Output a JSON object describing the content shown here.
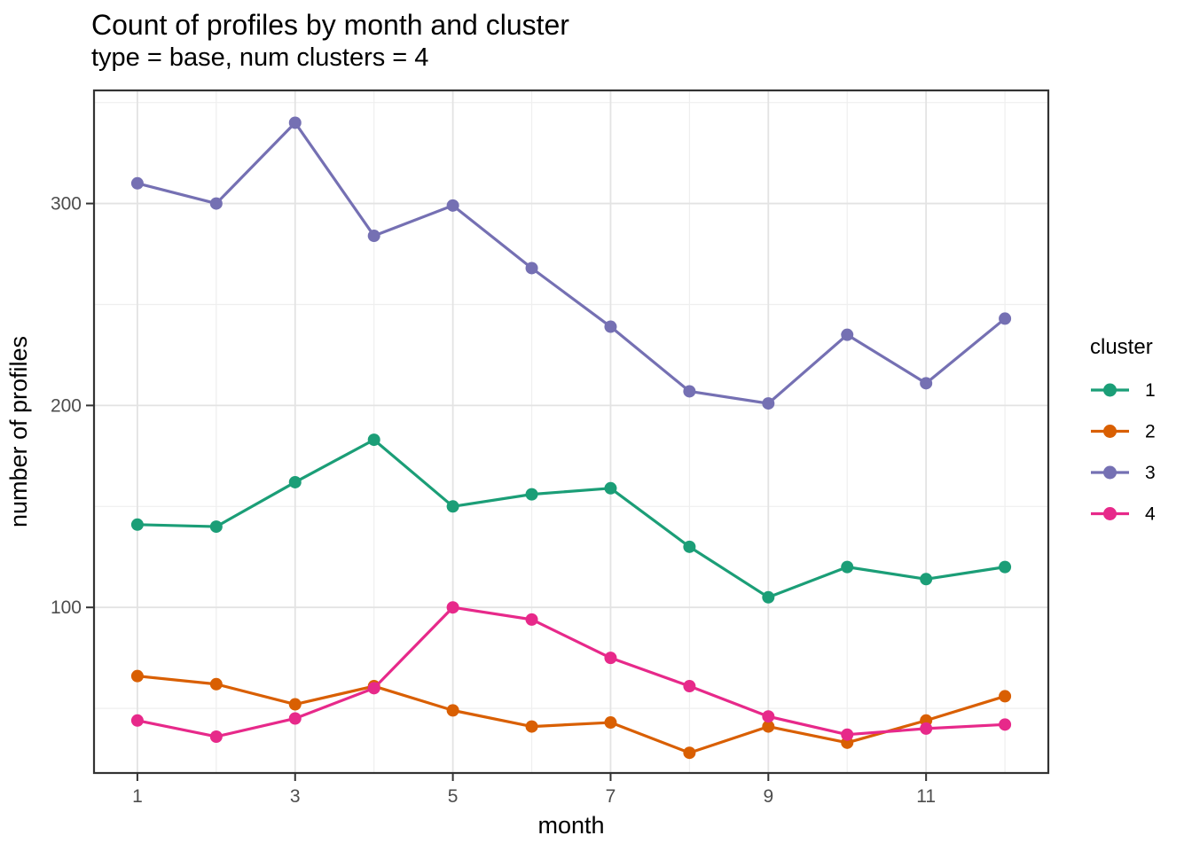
{
  "header": {
    "title": "Count of profiles by month and cluster",
    "subtitle": "type = base, num clusters = 4"
  },
  "chart_data": {
    "type": "line",
    "x": [
      1,
      2,
      3,
      4,
      5,
      6,
      7,
      8,
      9,
      10,
      11,
      12
    ],
    "series": [
      {
        "name": "1",
        "color": "#1B9E77",
        "values": [
          141,
          140,
          162,
          183,
          150,
          156,
          159,
          130,
          105,
          120,
          114,
          120
        ]
      },
      {
        "name": "2",
        "color": "#D95F02",
        "values": [
          66,
          62,
          52,
          61,
          49,
          41,
          43,
          28,
          41,
          33,
          44,
          56
        ]
      },
      {
        "name": "3",
        "color": "#7570B3",
        "values": [
          310,
          300,
          340,
          284,
          299,
          268,
          239,
          207,
          201,
          235,
          211,
          243
        ]
      },
      {
        "name": "4",
        "color": "#E7298A",
        "values": [
          44,
          36,
          45,
          60,
          100,
          94,
          75,
          61,
          46,
          37,
          40,
          42
        ]
      }
    ],
    "title": "Count of profiles by month and cluster",
    "subtitle": "type = base, num clusters = 4",
    "xlabel": "month",
    "ylabel": "number of profiles",
    "x_ticks": [
      1,
      3,
      5,
      7,
      9,
      11
    ],
    "x_minor_gridlines": [
      2,
      4,
      6,
      8,
      10,
      12
    ],
    "y_ticks": [
      100,
      200,
      300
    ],
    "y_minor_gridlines": [
      50,
      150,
      250,
      350
    ],
    "xlim": [
      0.45,
      12.55
    ],
    "ylim": [
      18,
      356
    ],
    "grid": true,
    "legend_position": "right"
  },
  "legend": {
    "title": "cluster",
    "entries": [
      {
        "label": "1",
        "color": "#1B9E77"
      },
      {
        "label": "2",
        "color": "#D95F02"
      },
      {
        "label": "3",
        "color": "#7570B3"
      },
      {
        "label": "4",
        "color": "#E7298A"
      }
    ]
  },
  "style": {
    "background": "#FFFFFF",
    "panel_background": "#FFFFFF",
    "grid_major": "#E3E3E3",
    "grid_minor": "#EFEFEF",
    "panel_border": "#333333",
    "tick_color": "#333333",
    "tick_label_color": "#4D4D4D",
    "text_color": "#000000"
  }
}
